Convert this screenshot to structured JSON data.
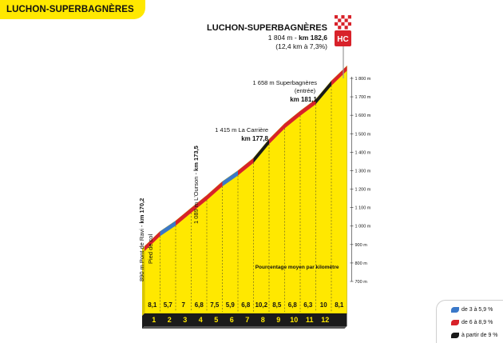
{
  "header": {
    "title": "LUCHON-SUPERBAGNÈRES"
  },
  "finish": {
    "name": "LUCHON-SUPERBAGNÈRES",
    "alt_text": "1 804 m - ",
    "km_text": "km 182,6",
    "climb_text": "(12,4 km à 7,3%)",
    "category": "HC"
  },
  "annotations": [
    {
      "id": "pied-de-col",
      "lines": [
        "890 m Pont de Ravi - ",
        "km 170,2"
      ],
      "sub": "Pied de col"
    },
    {
      "id": "lourson",
      "lines": [
        "1 089 m L'Ourson - ",
        "km 173,5"
      ]
    },
    {
      "id": "la-carriere",
      "line1": "1 415 m La Carrière",
      "km": "km 177,8"
    },
    {
      "id": "superbagneres-entree",
      "line1": "1 658 m Superbagnères",
      "line2": "(entrée)",
      "km": "km 181,1"
    }
  ],
  "chart_data": {
    "type": "area",
    "title": "LUCHON-SUPERBAGNÈRES",
    "xlabel": "",
    "ylabel": "",
    "y_unit": "m",
    "ylim": [
      700,
      1800
    ],
    "y_ticks": [
      "700 m",
      "800 m",
      "900 m",
      "1 000 m",
      "1 100 m",
      "1 200 m",
      "1 300 m",
      "1 400 m",
      "1 500 m",
      "1 600 m",
      "1 700 m",
      "1 800 m"
    ],
    "y_tick_values": [
      700,
      800,
      900,
      1000,
      1100,
      1200,
      1300,
      1400,
      1500,
      1600,
      1700,
      1800
    ],
    "km_markers": [
      "1",
      "2",
      "3",
      "4",
      "5",
      "6",
      "7",
      "8",
      "9",
      "10",
      "11",
      "12"
    ],
    "gradient_caption": "Pourcentage moyen par kilomètre",
    "segments": [
      {
        "km": "1",
        "gradient": "8,1",
        "value": 8.1,
        "category": "red"
      },
      {
        "km": "2",
        "gradient": "5,7",
        "value": 5.7,
        "category": "blue"
      },
      {
        "km": "3",
        "gradient": "7",
        "value": 7.0,
        "category": "red"
      },
      {
        "km": "4",
        "gradient": "6,8",
        "value": 6.8,
        "category": "red"
      },
      {
        "km": "5",
        "gradient": "7,5",
        "value": 7.5,
        "category": "red"
      },
      {
        "km": "6",
        "gradient": "5,9",
        "value": 5.9,
        "category": "blue"
      },
      {
        "km": "7",
        "gradient": "6,8",
        "value": 6.8,
        "category": "red"
      },
      {
        "km": "8",
        "gradient": "10,2",
        "value": 10.2,
        "category": "black"
      },
      {
        "km": "9",
        "gradient": "8,5",
        "value": 8.5,
        "category": "red"
      },
      {
        "km": "10",
        "gradient": "6,8",
        "value": 6.8,
        "category": "red"
      },
      {
        "km": "11",
        "gradient": "6,3",
        "value": 6.3,
        "category": "red"
      },
      {
        "km": "12",
        "gradient": "10",
        "value": 10.0,
        "category": "black"
      },
      {
        "km": "",
        "gradient": "8,1",
        "value": 8.1,
        "category": "red"
      }
    ],
    "legend": [
      {
        "label": "de 3 à 5,9 %",
        "color": "#3a78c9"
      },
      {
        "label": "de 6 à 8,9 %",
        "color": "#d8222a"
      },
      {
        "label": "à partir de 9 %",
        "color": "#1a1a1a"
      }
    ],
    "colors": {
      "fill": "#ffe800",
      "red": "#d8222a",
      "blue": "#3a78c9",
      "black": "#1a1a1a",
      "base": "#1a1a1a"
    }
  }
}
